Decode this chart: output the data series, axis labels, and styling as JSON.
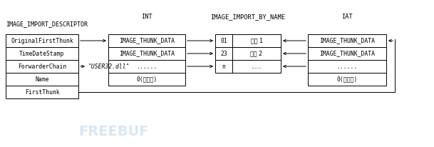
{
  "bg_color": "#ffffff",
  "title_int": "INT",
  "title_ibn": "IMAGE_IMPORT_BY_NAME",
  "title_iat": "IAT",
  "label_descriptor": "IMAGE_IMPORT_DESCRIPTOR",
  "descriptor_rows": [
    "OriginalFirstThunk",
    "TimeDateStamp",
    "ForwarderChain",
    "Name",
    "FirstThunk"
  ],
  "int_rows": [
    "IMAGE_THUNK_DATA",
    "IMAGE_THUNK_DATA",
    "......",
    "0(结束符)"
  ],
  "ibn_rows_left": [
    "01",
    "23",
    "n"
  ],
  "ibn_rows_right": [
    "函数 1",
    "函数 2",
    "......"
  ],
  "iat_rows": [
    "IMAGE_THUNK_DATA",
    "IMAGE_THUNK_DATA",
    "......",
    "0(结束符)"
  ],
  "name_label": "\"USER32.dll\"",
  "font_size_label": 6.0,
  "font_size_cell": 5.8,
  "font_size_title": 6.2,
  "lw": 0.7,
  "watermark_color": "#c0d8e8",
  "text_color": "#000000"
}
